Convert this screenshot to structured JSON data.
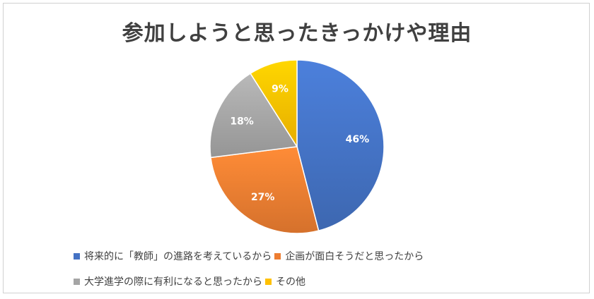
{
  "chart_data": {
    "type": "pie",
    "title": "参加しようと思ったきっかけや理由",
    "categories": [
      "将来的に「教師」の進路を考えているから",
      "企画が面白そうだと思ったから",
      "大学進学の際に有利になると思ったから",
      "その他"
    ],
    "values": [
      46,
      27,
      18,
      9
    ],
    "data_labels": [
      "46%",
      "27%",
      "18%",
      "9%"
    ],
    "colors": [
      "#4472C4",
      "#ED7D31",
      "#A5A5A5",
      "#FFC000"
    ],
    "legend_position": "bottom"
  }
}
